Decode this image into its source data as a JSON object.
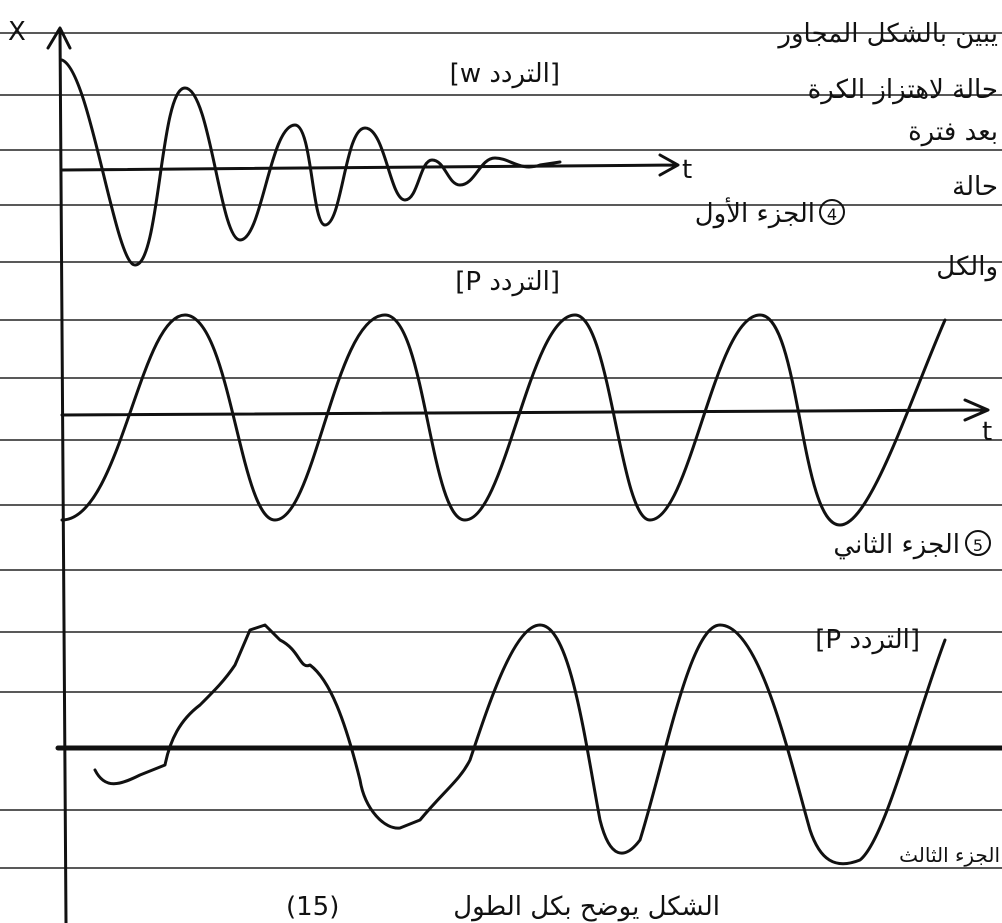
{
  "axis": {
    "x_label": "X",
    "t_labels": [
      "t",
      "t"
    ]
  },
  "side_text": [
    "يبين بالشكل المجاور",
    "حالة لاهتزاز الكرة",
    "بعد فترة",
    "حالة",
    "والكل"
  ],
  "parts": [
    {
      "number": "4",
      "title": "الجزء الأول",
      "frequency": "[التردد w]"
    },
    {
      "number": "5",
      "title": "الجزء الثاني",
      "frequency": "[التردد P]"
    },
    {
      "title": "الجزء الثالث",
      "frequency": "[التردد P]"
    }
  ],
  "caption": {
    "number": "(15)",
    "text": "الشكل يوضح بكل الطول"
  }
}
